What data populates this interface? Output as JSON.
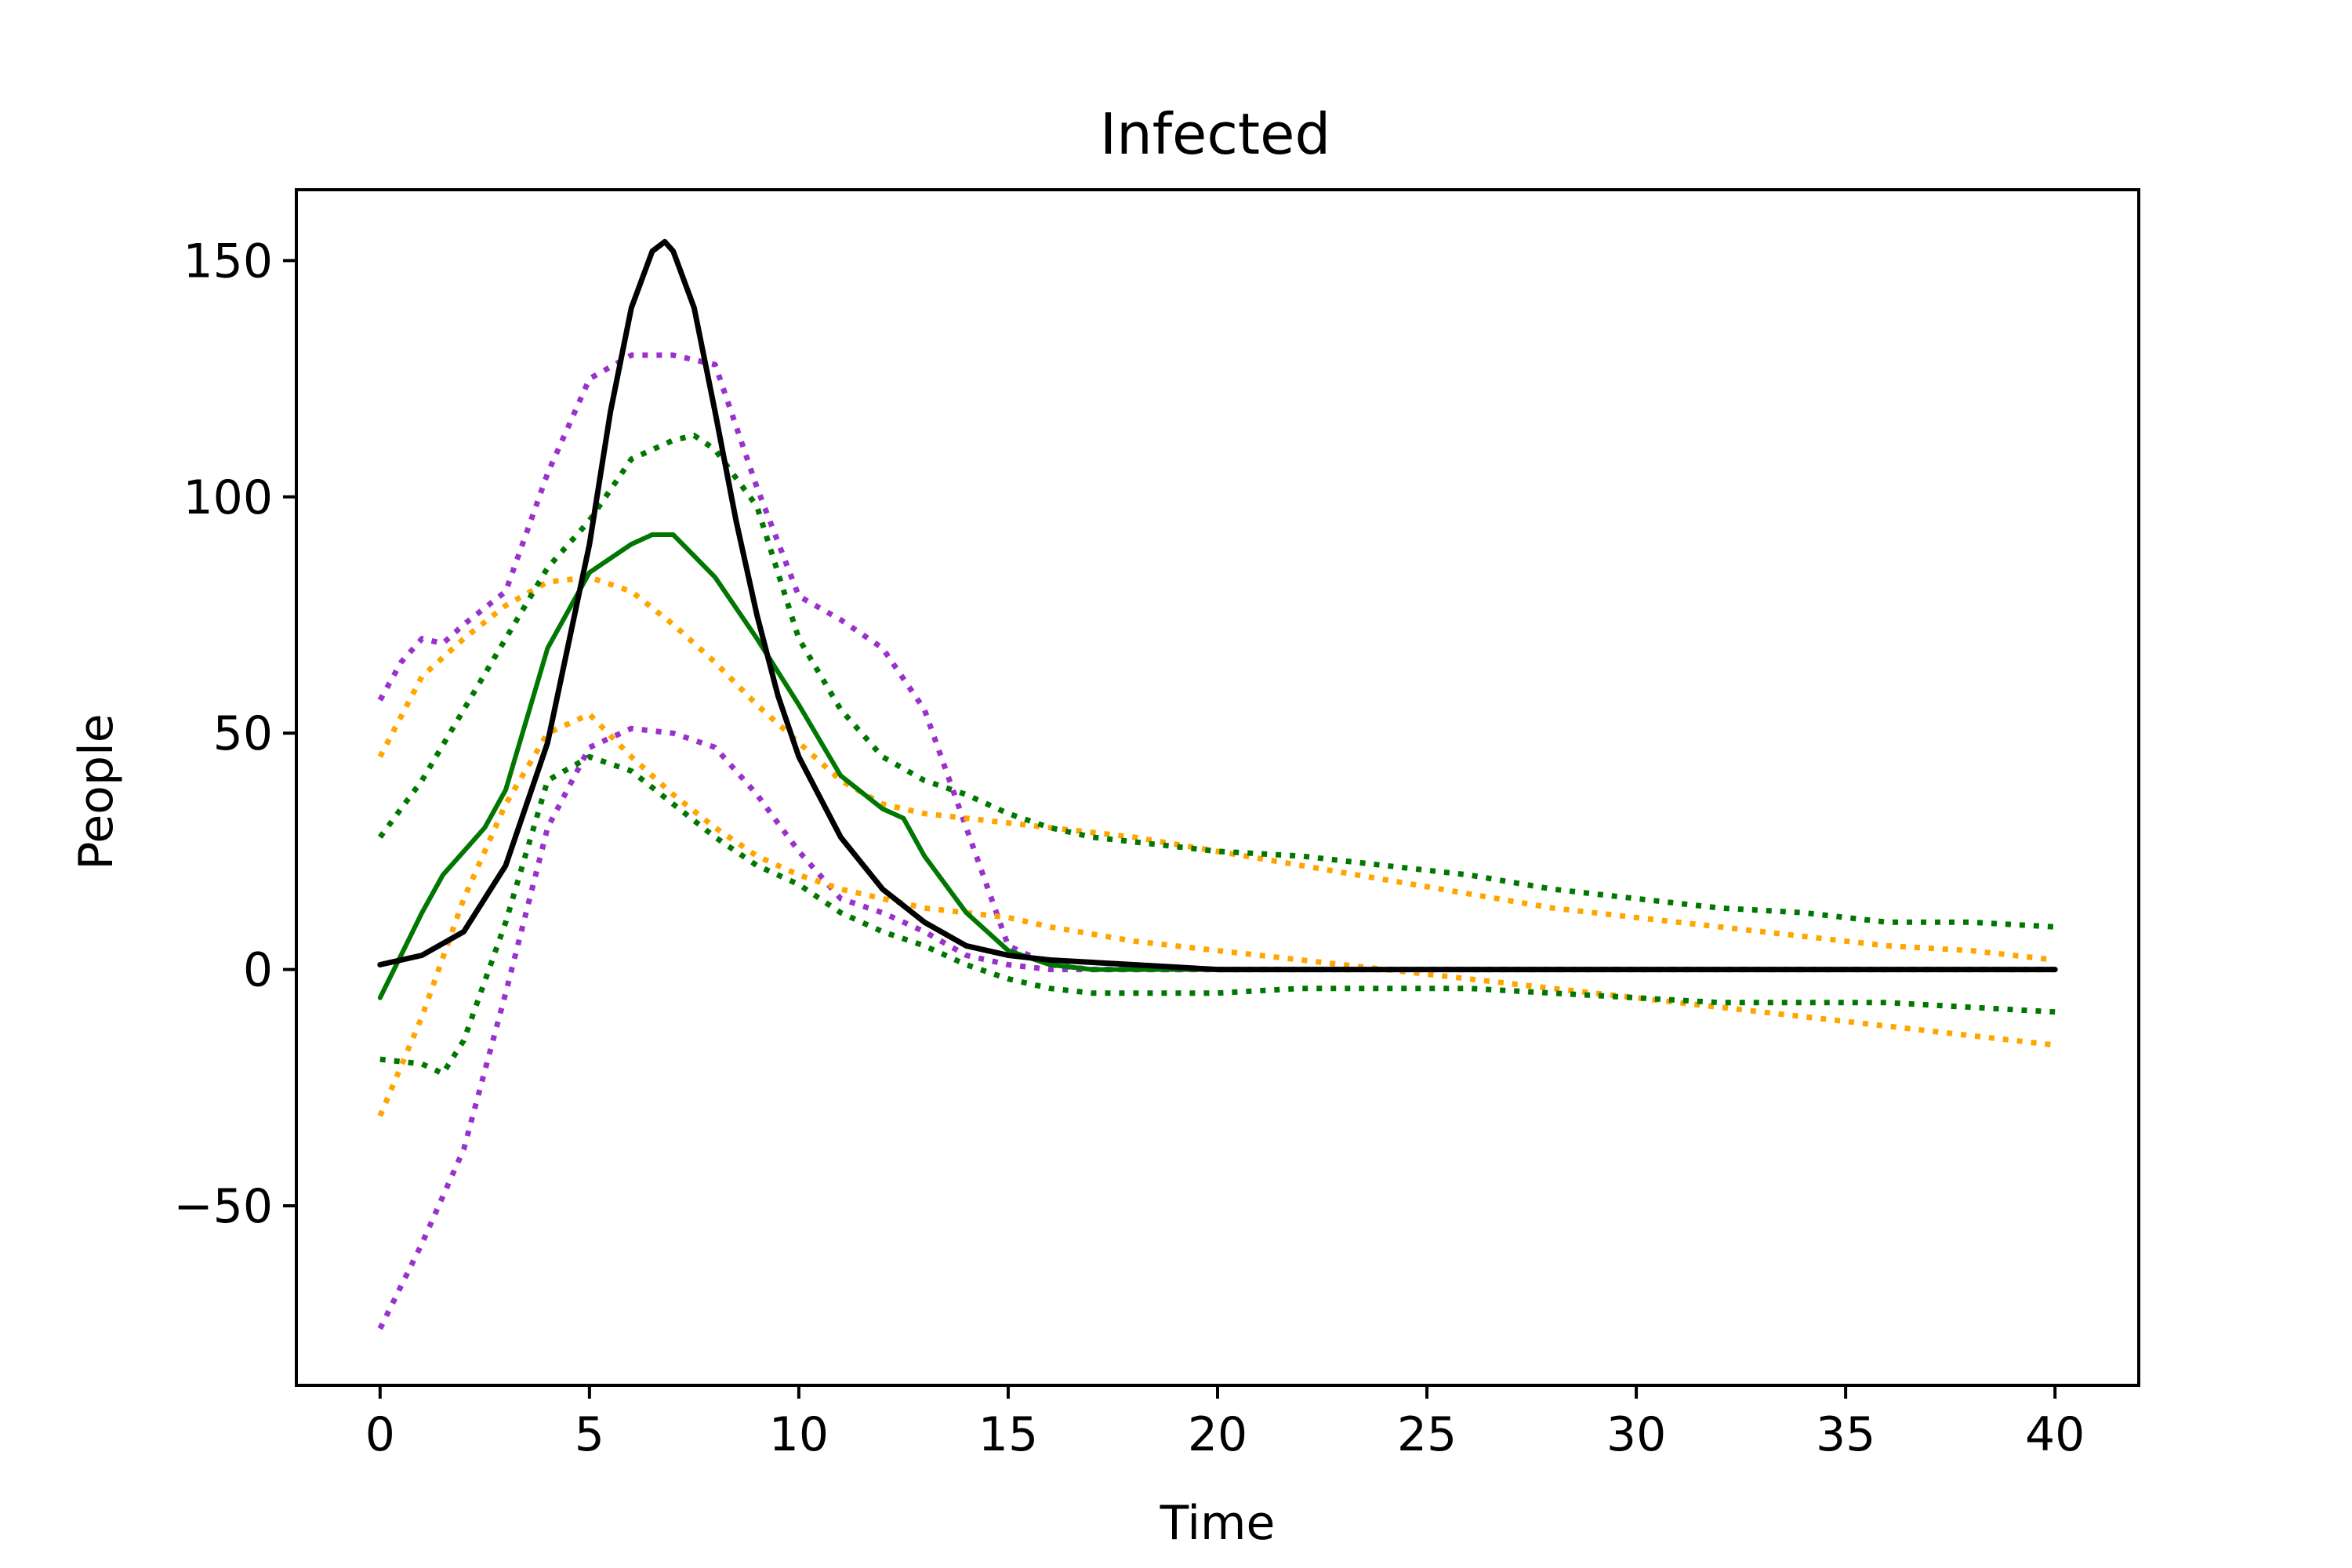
{
  "chart_data": {
    "type": "line",
    "title": "Infected",
    "xlabel": "Time",
    "ylabel": "People",
    "xlim": [
      -2,
      42
    ],
    "ylim": [
      -88,
      165
    ],
    "xticks": [
      0,
      5,
      10,
      15,
      20,
      25,
      30,
      35,
      40
    ],
    "yticks": [
      -50,
      0,
      50,
      100,
      150
    ],
    "xtick_labels": [
      "0",
      "5",
      "10",
      "15",
      "20",
      "25",
      "30",
      "35",
      "40"
    ],
    "ytick_labels": [
      "−50",
      "0",
      "50",
      "100",
      "150"
    ],
    "grid": false,
    "legend": "none",
    "series": [
      {
        "style": "dotted",
        "color": "#9932cc",
        "x": [
          0,
          0.5,
          1,
          1.5,
          2,
          3,
          4,
          5,
          6,
          7,
          8,
          9,
          10,
          11,
          12,
          13,
          14,
          15,
          16,
          17,
          18,
          20,
          25,
          30,
          35,
          40
        ],
        "y": [
          57,
          65,
          70,
          69,
          73,
          80,
          105,
          125,
          130,
          130,
          128,
          102,
          79,
          74,
          68,
          55,
          30,
          5,
          1,
          0,
          0,
          0,
          0,
          0,
          0,
          0
        ]
      },
      {
        "style": "dotted",
        "color": "#9932cc",
        "x": [
          0,
          1,
          2,
          3,
          4,
          5,
          6,
          7,
          8,
          9,
          10,
          11,
          12,
          13,
          14,
          15,
          16,
          17,
          18,
          20,
          25,
          30,
          35,
          40
        ],
        "y": [
          -76,
          -58,
          -38,
          -5,
          30,
          47,
          51,
          50,
          47,
          37,
          25,
          15,
          12,
          8,
          3,
          1,
          0,
          0,
          0,
          0,
          0,
          0,
          0,
          0
        ]
      },
      {
        "style": "dotted",
        "color": "#ffa500",
        "x": [
          0,
          1,
          2,
          3,
          4,
          5,
          6,
          7,
          8,
          9,
          10,
          11,
          12,
          13,
          14,
          15,
          16,
          18,
          20,
          22,
          24,
          26,
          28,
          30,
          32,
          34,
          36,
          38,
          40
        ],
        "y": [
          45,
          62,
          70,
          77,
          82,
          83,
          80,
          73,
          65,
          56,
          48,
          40,
          35,
          33,
          32,
          31,
          30,
          28,
          25,
          22,
          19,
          16,
          13,
          11,
          9,
          7,
          5,
          4,
          2
        ]
      },
      {
        "style": "dotted",
        "color": "#ffa500",
        "x": [
          0,
          1,
          2,
          3,
          4,
          5,
          6,
          7,
          8,
          9,
          10,
          11,
          12,
          13,
          14,
          15,
          16,
          18,
          20,
          22,
          24,
          26,
          28,
          30,
          32,
          34,
          36,
          38,
          40
        ],
        "y": [
          -31,
          -10,
          15,
          35,
          50,
          54,
          45,
          37,
          30,
          24,
          20,
          17,
          15,
          13,
          12,
          11,
          9,
          6,
          4,
          2,
          0,
          -2,
          -4,
          -6,
          -8,
          -10,
          -12,
          -14,
          -16
        ]
      },
      {
        "style": "dotted",
        "color": "#007700",
        "x": [
          0,
          1,
          2,
          3,
          4,
          5,
          6,
          7,
          7.5,
          8,
          9,
          10,
          11,
          12,
          13,
          14,
          15,
          16,
          17,
          18,
          20,
          22,
          24,
          26,
          28,
          30,
          32,
          34,
          36,
          38,
          40
        ],
        "y": [
          28,
          40,
          55,
          70,
          85,
          95,
          108,
          112,
          113,
          110,
          98,
          70,
          55,
          45,
          40,
          37,
          33,
          30,
          28,
          27,
          25,
          24,
          22,
          20,
          17,
          15,
          13,
          12,
          10,
          10,
          9
        ]
      },
      {
        "style": "dotted",
        "color": "#007700",
        "x": [
          0,
          1,
          1.5,
          2,
          3,
          4,
          5,
          6,
          7,
          8,
          9,
          10,
          11,
          12,
          13,
          14,
          15,
          16,
          17,
          18,
          20,
          22,
          24,
          26,
          28,
          30,
          32,
          34,
          36,
          38,
          40
        ],
        "y": [
          -19,
          -20,
          -22,
          -15,
          10,
          40,
          45,
          42,
          35,
          28,
          22,
          18,
          12,
          8,
          5,
          1,
          -2,
          -4,
          -5,
          -5,
          -5,
          -4,
          -4,
          -4,
          -5,
          -6,
          -7,
          -7,
          -7,
          -8,
          -9
        ]
      },
      {
        "style": "solid",
        "color": "#007700",
        "x": [
          0,
          0.5,
          1,
          1.5,
          2,
          2.5,
          3,
          3.5,
          4,
          5,
          6,
          6.5,
          7,
          8,
          9,
          10,
          11,
          12,
          12.5,
          13,
          14,
          15,
          16,
          17,
          18,
          20,
          25,
          30,
          35,
          40
        ],
        "y": [
          -6,
          3,
          12,
          20,
          25,
          30,
          38,
          53,
          68,
          84,
          90,
          92,
          92,
          83,
          70,
          56,
          41,
          34,
          32,
          24,
          12,
          4,
          1,
          0,
          0,
          0,
          0,
          0,
          0,
          0
        ]
      },
      {
        "style": "solid",
        "color": "#000000",
        "x": [
          0,
          1,
          2,
          3,
          4,
          5,
          5.5,
          6,
          6.5,
          6.8,
          7,
          7.5,
          8,
          8.5,
          9,
          9.5,
          10,
          11,
          12,
          13,
          14,
          15,
          16,
          18,
          20,
          25,
          30,
          35,
          40
        ],
        "y": [
          1,
          3,
          8,
          22,
          48,
          90,
          118,
          140,
          152,
          154,
          152,
          140,
          118,
          95,
          75,
          58,
          45,
          28,
          17,
          10,
          5,
          3,
          2,
          1,
          0,
          0,
          0,
          0,
          0
        ]
      }
    ]
  }
}
